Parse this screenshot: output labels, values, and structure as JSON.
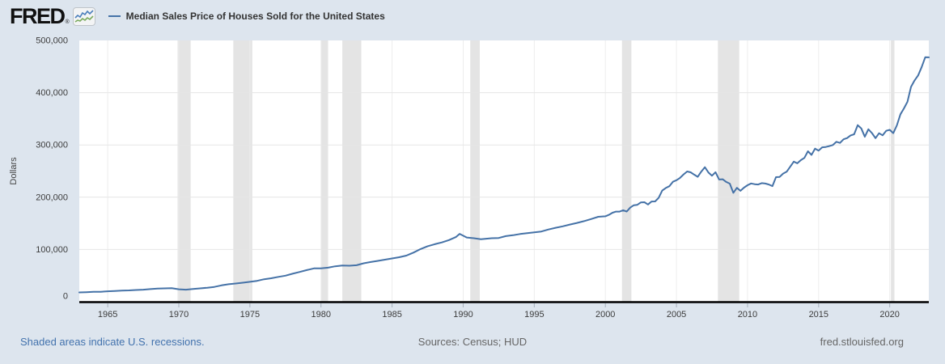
{
  "header": {
    "logo_text": "FRED",
    "logo_reg": "®",
    "series_title": "Median Sales Price of Houses Sold for the United States"
  },
  "y_axis": {
    "label": "Dollars",
    "ticks": [
      {
        "value": 0,
        "label": "0"
      },
      {
        "value": 100000,
        "label": "100,000"
      },
      {
        "value": 200000,
        "label": "200,000"
      },
      {
        "value": 300000,
        "label": "300,000"
      },
      {
        "value": 400000,
        "label": "400,000"
      },
      {
        "value": 500000,
        "label": "500,000"
      }
    ]
  },
  "x_axis": {
    "ticks": [
      {
        "value": 1965,
        "label": "1965"
      },
      {
        "value": 1970,
        "label": "1970"
      },
      {
        "value": 1975,
        "label": "1975"
      },
      {
        "value": 1980,
        "label": "1980"
      },
      {
        "value": 1985,
        "label": "1985"
      },
      {
        "value": 1990,
        "label": "1990"
      },
      {
        "value": 1995,
        "label": "1995"
      },
      {
        "value": 2000,
        "label": "2000"
      },
      {
        "value": 2005,
        "label": "2005"
      },
      {
        "value": 2010,
        "label": "2010"
      },
      {
        "value": 2015,
        "label": "2015"
      },
      {
        "value": 2020,
        "label": "2020"
      }
    ]
  },
  "footer": {
    "recession_note": "Shaded areas indicate U.S. recessions.",
    "sources": "Sources: Census; HUD",
    "site": "fred.stlouisfed.org"
  },
  "colors": {
    "background": "#dde5ee",
    "plot_background": "#ffffff",
    "line": "#4572a7",
    "recession_band": "#e4e4e4",
    "gridline_horizontal": "#e6e6e6",
    "gridline_vertical": "#ededed",
    "axis_line": "#000000",
    "tick_mark": "#a6b0bc",
    "tick_text": "#3c3c3c",
    "axis_label_text": "#444444",
    "link_blue": "#4272ad"
  },
  "chart_data": {
    "type": "line",
    "title": "Median Sales Price of Houses Sold for the United States",
    "ylabel": "Dollars",
    "xlabel": "",
    "x_range": [
      1963,
      2022.75
    ],
    "y_range": [
      0,
      500000
    ],
    "grid": true,
    "legend_position": "top",
    "frequency_note": "quarterly series; pre-2000 points are annual/semiannual approximations read from the plot",
    "recessions": [
      [
        1969.917,
        1970.833
      ],
      [
        1973.833,
        1975.167
      ],
      [
        1980.0,
        1980.5
      ],
      [
        1981.5,
        1982.833
      ],
      [
        1990.5,
        1991.167
      ],
      [
        2001.167,
        2001.833
      ],
      [
        2007.917,
        2009.417
      ],
      [
        2020.083,
        2020.333
      ]
    ],
    "series": [
      {
        "name": "Median Sales Price of Houses Sold for the United States",
        "color": "#4572a7",
        "points": [
          [
            1963.0,
            17800
          ],
          [
            1963.5,
            18200
          ],
          [
            1964.0,
            18900
          ],
          [
            1964.5,
            19100
          ],
          [
            1965.0,
            20000
          ],
          [
            1965.5,
            20600
          ],
          [
            1966.0,
            21400
          ],
          [
            1966.5,
            21700
          ],
          [
            1967.0,
            22400
          ],
          [
            1967.5,
            23100
          ],
          [
            1968.0,
            24100
          ],
          [
            1968.5,
            25100
          ],
          [
            1969.0,
            25600
          ],
          [
            1969.5,
            25900
          ],
          [
            1970.0,
            23900
          ],
          [
            1970.5,
            23000
          ],
          [
            1971.0,
            24300
          ],
          [
            1971.5,
            25500
          ],
          [
            1972.0,
            26800
          ],
          [
            1972.5,
            28300
          ],
          [
            1973.0,
            31200
          ],
          [
            1973.5,
            33400
          ],
          [
            1974.0,
            34900
          ],
          [
            1974.5,
            36400
          ],
          [
            1975.0,
            38100
          ],
          [
            1975.5,
            39900
          ],
          [
            1976.0,
            43000
          ],
          [
            1976.5,
            44900
          ],
          [
            1977.0,
            47500
          ],
          [
            1977.5,
            49800
          ],
          [
            1978.0,
            53600
          ],
          [
            1978.5,
            57000
          ],
          [
            1979.0,
            60600
          ],
          [
            1979.5,
            63800
          ],
          [
            1980.0,
            63700
          ],
          [
            1980.5,
            65100
          ],
          [
            1981.0,
            67800
          ],
          [
            1981.5,
            69200
          ],
          [
            1982.0,
            68900
          ],
          [
            1982.5,
            69800
          ],
          [
            1983.0,
            73500
          ],
          [
            1983.5,
            76000
          ],
          [
            1984.0,
            78200
          ],
          [
            1984.5,
            80500
          ],
          [
            1985.0,
            82800
          ],
          [
            1985.5,
            85200
          ],
          [
            1986.0,
            88300
          ],
          [
            1986.5,
            94000
          ],
          [
            1987.0,
            100800
          ],
          [
            1987.5,
            106200
          ],
          [
            1988.0,
            110000
          ],
          [
            1988.5,
            113500
          ],
          [
            1989.0,
            118000
          ],
          [
            1989.5,
            124000
          ],
          [
            1989.75,
            129900
          ],
          [
            1990.25,
            122900
          ],
          [
            1990.75,
            121500
          ],
          [
            1991.25,
            119500
          ],
          [
            1992.0,
            121500
          ],
          [
            1992.5,
            122000
          ],
          [
            1993.0,
            125500
          ],
          [
            1993.5,
            127300
          ],
          [
            1994.0,
            129500
          ],
          [
            1994.5,
            131200
          ],
          [
            1995.0,
            132600
          ],
          [
            1995.5,
            134400
          ],
          [
            1996.0,
            138300
          ],
          [
            1996.5,
            141500
          ],
          [
            1997.0,
            144200
          ],
          [
            1997.5,
            147700
          ],
          [
            1998.0,
            150800
          ],
          [
            1998.5,
            154200
          ],
          [
            1999.0,
            158200
          ],
          [
            1999.5,
            162500
          ],
          [
            2000.0,
            163500
          ],
          [
            2000.25,
            166200
          ],
          [
            2000.5,
            170300
          ],
          [
            2000.75,
            172400
          ],
          [
            2001.0,
            172500
          ],
          [
            2001.25,
            175000
          ],
          [
            2001.5,
            172600
          ],
          [
            2001.75,
            180200
          ],
          [
            2002.0,
            184600
          ],
          [
            2002.25,
            185400
          ],
          [
            2002.5,
            190100
          ],
          [
            2002.75,
            190400
          ],
          [
            2003.0,
            186000
          ],
          [
            2003.25,
            191800
          ],
          [
            2003.5,
            191900
          ],
          [
            2003.75,
            198800
          ],
          [
            2004.0,
            212700
          ],
          [
            2004.25,
            217600
          ],
          [
            2004.5,
            221000
          ],
          [
            2004.75,
            229600
          ],
          [
            2005.0,
            232500
          ],
          [
            2005.25,
            237000
          ],
          [
            2005.5,
            243600
          ],
          [
            2005.75,
            249300
          ],
          [
            2006.0,
            247700
          ],
          [
            2006.25,
            243200
          ],
          [
            2006.5,
            239000
          ],
          [
            2006.75,
            249000
          ],
          [
            2007.0,
            257400
          ],
          [
            2007.25,
            247300
          ],
          [
            2007.5,
            241200
          ],
          [
            2007.75,
            247900
          ],
          [
            2008.0,
            233900
          ],
          [
            2008.25,
            234300
          ],
          [
            2008.5,
            229300
          ],
          [
            2008.75,
            226000
          ],
          [
            2009.0,
            208400
          ],
          [
            2009.25,
            218000
          ],
          [
            2009.5,
            212200
          ],
          [
            2009.75,
            218200
          ],
          [
            2010.0,
            222900
          ],
          [
            2010.25,
            226300
          ],
          [
            2010.5,
            225000
          ],
          [
            2010.75,
            224300
          ],
          [
            2011.0,
            226900
          ],
          [
            2011.25,
            226100
          ],
          [
            2011.5,
            224300
          ],
          [
            2011.75,
            221200
          ],
          [
            2012.0,
            238400
          ],
          [
            2012.25,
            238700
          ],
          [
            2012.5,
            245200
          ],
          [
            2012.75,
            248800
          ],
          [
            2013.0,
            258400
          ],
          [
            2013.25,
            268100
          ],
          [
            2013.5,
            264800
          ],
          [
            2013.75,
            270900
          ],
          [
            2014.0,
            275200
          ],
          [
            2014.25,
            288000
          ],
          [
            2014.5,
            281000
          ],
          [
            2014.75,
            293000
          ],
          [
            2015.0,
            289200
          ],
          [
            2015.25,
            295500
          ],
          [
            2015.5,
            296100
          ],
          [
            2015.75,
            297800
          ],
          [
            2016.0,
            299800
          ],
          [
            2016.25,
            306000
          ],
          [
            2016.5,
            303800
          ],
          [
            2016.75,
            310900
          ],
          [
            2017.0,
            313100
          ],
          [
            2017.25,
            318200
          ],
          [
            2017.5,
            320500
          ],
          [
            2017.75,
            337900
          ],
          [
            2018.0,
            331800
          ],
          [
            2018.25,
            315600
          ],
          [
            2018.5,
            330000
          ],
          [
            2018.75,
            322800
          ],
          [
            2019.0,
            313000
          ],
          [
            2019.25,
            322500
          ],
          [
            2019.5,
            318400
          ],
          [
            2019.75,
            327100
          ],
          [
            2020.0,
            329000
          ],
          [
            2020.25,
            322600
          ],
          [
            2020.5,
            337500
          ],
          [
            2020.75,
            358700
          ],
          [
            2021.0,
            369800
          ],
          [
            2021.25,
            382600
          ],
          [
            2021.5,
            411200
          ],
          [
            2021.75,
            423600
          ],
          [
            2022.0,
            433100
          ],
          [
            2022.25,
            449300
          ],
          [
            2022.5,
            468000
          ],
          [
            2022.75,
            467700
          ]
        ]
      }
    ]
  }
}
